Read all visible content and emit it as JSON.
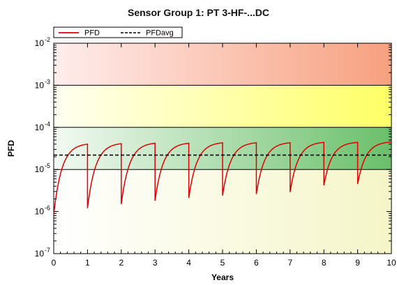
{
  "chart_data": {
    "type": "line",
    "title": "Sensor Group 1: PT 3-HF-...DC",
    "xlabel": "Years",
    "ylabel": "PFD",
    "xlim": [
      0,
      10
    ],
    "ylim": [
      1e-07,
      0.01
    ],
    "yscale": "log",
    "x_ticks": [
      "0",
      "1",
      "2",
      "3",
      "4",
      "5",
      "6",
      "7",
      "8",
      "9",
      "10"
    ],
    "y_ticks": [
      {
        "base": "10",
        "exp": "-7",
        "value": 1e-07
      },
      {
        "base": "10",
        "exp": "-6",
        "value": 1e-06
      },
      {
        "base": "10",
        "exp": "-5",
        "value": 1e-05
      },
      {
        "base": "10",
        "exp": "-4",
        "value": 0.0001
      },
      {
        "base": "10",
        "exp": "-3",
        "value": 0.001
      },
      {
        "base": "10",
        "exp": "-2",
        "value": 0.01
      }
    ],
    "bands": [
      {
        "from": 0.001,
        "to": 0.01,
        "color_start": "#ffeded",
        "color_end": "#f7a07e"
      },
      {
        "from": 0.0001,
        "to": 0.001,
        "color_start": "#fffff2",
        "color_end": "#ffff66"
      },
      {
        "from": 1e-05,
        "to": 0.0001,
        "color_start": "#f3faf3",
        "color_end": "#6abf6a"
      },
      {
        "from": 1e-07,
        "to": 1e-05,
        "color_start": "#ffffff",
        "color_end": "#f5f5c8"
      }
    ],
    "legend": {
      "placement": "top-left",
      "entries": [
        {
          "name": "PFD",
          "color": "#e00000",
          "style": "solid"
        },
        {
          "name": "PFDavg",
          "color": "#000000",
          "style": "dashed"
        }
      ]
    },
    "series": [
      {
        "name": "PFD",
        "color": "#e00000",
        "start_value": 8.5e-07,
        "cycles": [
          {
            "from": 0,
            "to": 1,
            "min": 8.5e-07,
            "max": 4e-05
          },
          {
            "from": 1,
            "to": 2,
            "min": 1.2e-06,
            "max": 4.1e-05
          },
          {
            "from": 2,
            "to": 3,
            "min": 1.5e-06,
            "max": 4.2e-05
          },
          {
            "from": 3,
            "to": 4,
            "min": 1.8e-06,
            "max": 4.2e-05
          },
          {
            "from": 4,
            "to": 5,
            "min": 2.1e-06,
            "max": 4.3e-05
          },
          {
            "from": 5,
            "to": 6,
            "min": 2.4e-06,
            "max": 4.3e-05
          },
          {
            "from": 6,
            "to": 7,
            "min": 2.6e-06,
            "max": 4.3e-05
          },
          {
            "from": 7,
            "to": 8,
            "min": 2.9e-06,
            "max": 4.4e-05
          },
          {
            "from": 8,
            "to": 9,
            "min": 4.2e-06,
            "max": 4.4e-05
          },
          {
            "from": 9,
            "to": 10,
            "min": 4.5e-06,
            "max": 4.5e-05
          }
        ]
      },
      {
        "name": "PFDavg",
        "color": "#000000",
        "value": 2.2e-05
      }
    ],
    "grid": false
  }
}
